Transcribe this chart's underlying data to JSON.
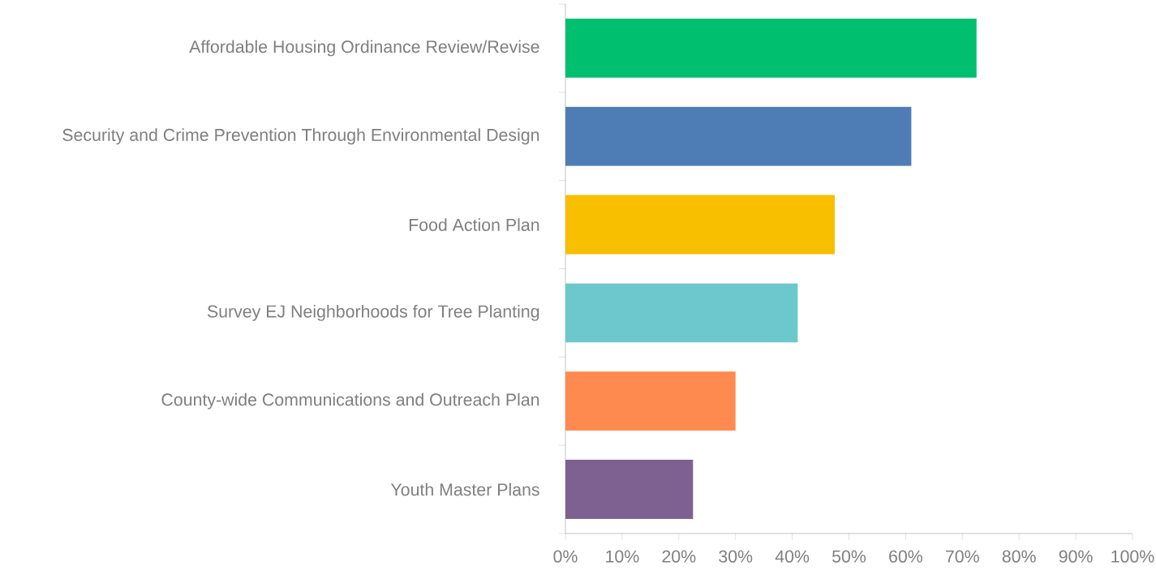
{
  "chart_data": {
    "type": "bar",
    "orientation": "horizontal",
    "categories": [
      "Affordable Housing Ordinance Review/Revise",
      "Security and Crime Prevention Through Environmental Design",
      "Food Action Plan",
      "Survey EJ Neighborhoods for Tree Planting",
      "County-wide Communications and Outreach Plan",
      "Youth Master Plans"
    ],
    "values": [
      72.5,
      61,
      47.5,
      41,
      30,
      22.5
    ],
    "colors": [
      "#00bf6f",
      "#4e7db5",
      "#f8be00",
      "#6cc8cc",
      "#ff8a50",
      "#7e6191"
    ],
    "xlim": [
      0,
      100
    ],
    "xticks": [
      {
        "value": 0,
        "label": "0%"
      },
      {
        "value": 10,
        "label": "10%"
      },
      {
        "value": 20,
        "label": "20%"
      },
      {
        "value": 30,
        "label": "30%"
      },
      {
        "value": 40,
        "label": "40%"
      },
      {
        "value": 50,
        "label": "50%"
      },
      {
        "value": 60,
        "label": "60%"
      },
      {
        "value": 70,
        "label": "70%"
      },
      {
        "value": 80,
        "label": "80%"
      },
      {
        "value": 90,
        "label": "90%"
      },
      {
        "value": 100,
        "label": "100%"
      }
    ]
  }
}
